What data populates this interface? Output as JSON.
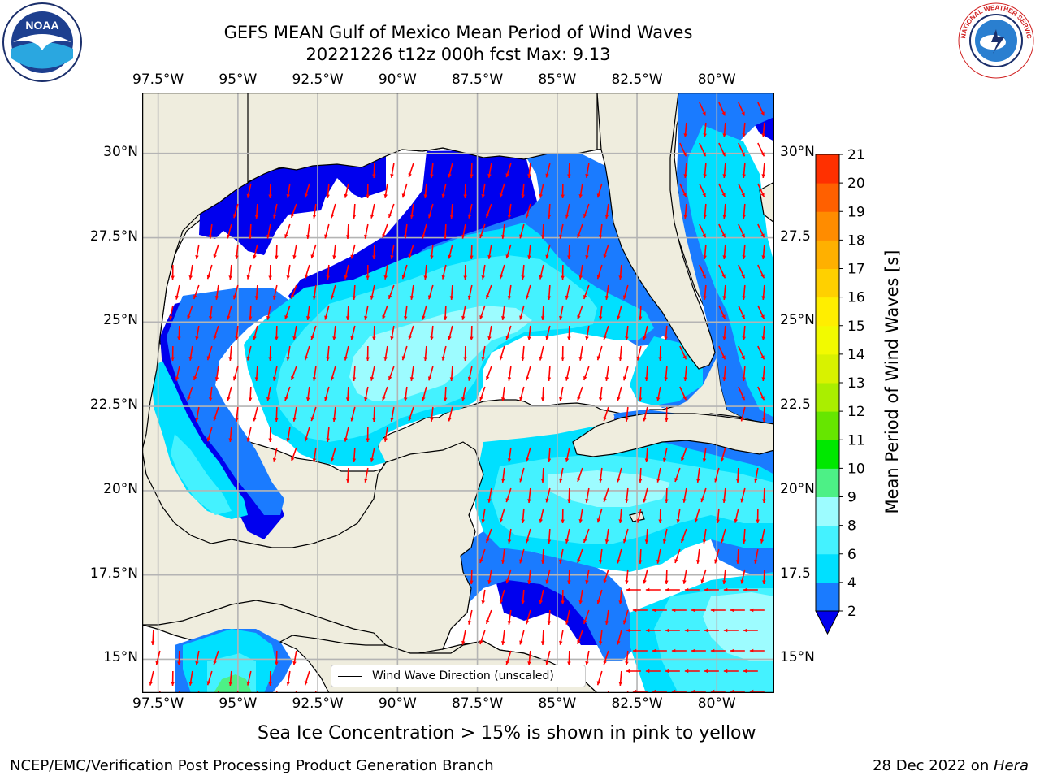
{
  "title": {
    "line1": "GEFS MEAN Gulf of Mexico Mean Period of Wind Waves",
    "line2": "20221226 t12z 000h fcst   Max: 9.13"
  },
  "map": {
    "lon_labels": [
      "97.5°W",
      "95°W",
      "92.5°W",
      "90°W",
      "87.5°W",
      "85°W",
      "82.5°W",
      "80°W"
    ],
    "lat_labels_left": [
      "30°N",
      "27.5°N",
      "25°N",
      "22.5°N",
      "20°N",
      "17.5°N",
      "15°N"
    ],
    "lat_labels_right": [
      "30°N",
      "27.5",
      "25°N",
      "22.5",
      "20°N",
      "17.5",
      "15°N"
    ],
    "lon_range": [
      -98,
      -78.2
    ],
    "lat_range": [
      14,
      31.8
    ],
    "legend_label": "Wind Wave Direction (unscaled)",
    "arrow_color": "#ff0000",
    "land_color": "#efedde",
    "ocean_nodata_color": "#ffffff"
  },
  "colorbar": {
    "label": "Mean Period of Wind Waves [s]",
    "ticks": [
      "2",
      "4",
      "6",
      "8",
      "9",
      "10",
      "11",
      "12",
      "13",
      "14",
      "15",
      "16",
      "17",
      "18",
      "19",
      "20",
      "21"
    ],
    "colors": [
      "#1a7bff",
      "#00e0ff",
      "#44f2ff",
      "#9dfcff",
      "#4df086",
      "#00e800",
      "#66e600",
      "#aaee00",
      "#d8f200",
      "#f2fa00",
      "#ffee00",
      "#ffd000",
      "#ffb000",
      "#ff8c00",
      "#ff6000",
      "#ff3000"
    ],
    "under_color": "#0000ee"
  },
  "subtitle": "Sea Ice Concentration > 15% is shown in pink to yellow",
  "footer": {
    "left": "NCEP/EMC/Verification Post Processing Product Generation Branch",
    "right_date": "28 Dec 2022 on ",
    "right_host": "Hera"
  },
  "logos": {
    "noaa": "NOAA",
    "nws": "NATIONAL WEATHER SERVICE"
  }
}
